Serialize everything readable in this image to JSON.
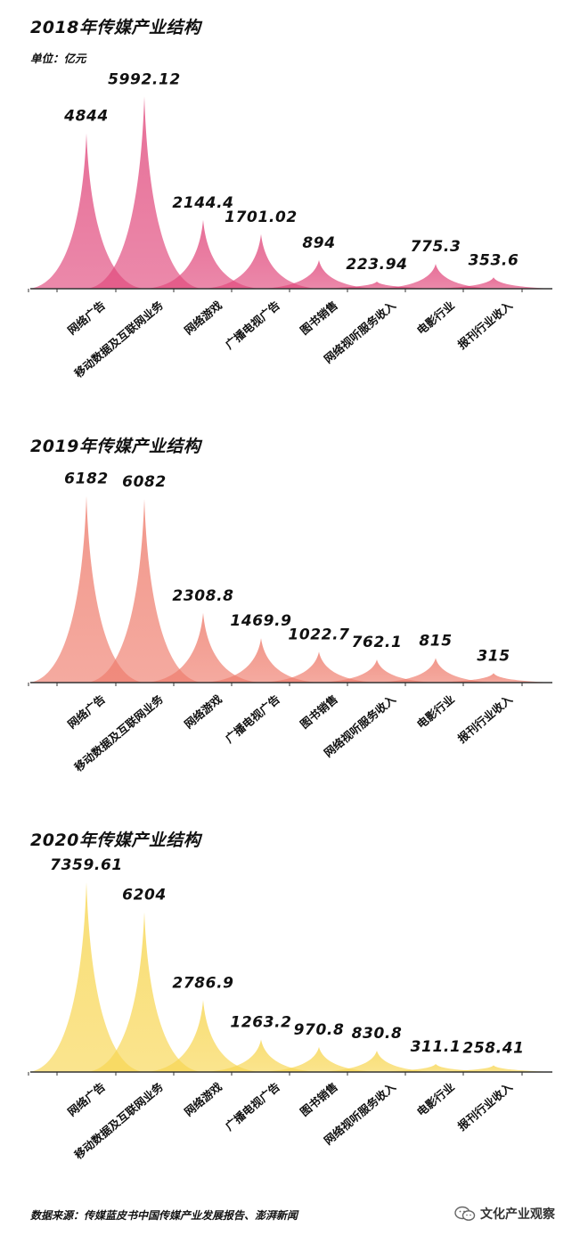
{
  "chart_data": [
    {
      "type": "area",
      "title": "2018年传媒产业结构",
      "unit": "单位：亿元",
      "color": "#E0467A",
      "categories": [
        "网络广告",
        "移动数据及互联网业务",
        "网络游戏",
        "广播电视广告",
        "图书销售",
        "网络视听服务收入",
        "电影行业",
        "报刊行业收入"
      ],
      "values": [
        4844,
        5992.12,
        2144.4,
        1701.02,
        894,
        223.94,
        775.3,
        353.6
      ],
      "value_labels": [
        "4844",
        "5992.12",
        "2144.4",
        "1701.02",
        "894",
        "223.94",
        "775.3",
        "353.6"
      ]
    },
    {
      "type": "area",
      "title": "2019年传媒产业结构",
      "unit": "",
      "color": "#EE7A6A",
      "categories": [
        "网络广告",
        "移动数据及互联网业务",
        "网络游戏",
        "广播电视广告",
        "图书销售",
        "网络视听服务收入",
        "电影行业",
        "报刊行业收入"
      ],
      "values": [
        6182,
        6082,
        2308.8,
        1469.9,
        1022.7,
        762.1,
        815,
        315
      ],
      "value_labels": [
        "6182",
        "6082",
        "2308.8",
        "1469.9",
        "1022.7",
        "762.1",
        "815",
        "315"
      ]
    },
    {
      "type": "area",
      "title": "2020年传媒产业结构",
      "unit": "",
      "color": "#F7D54E",
      "categories": [
        "网络广告",
        "移动数据及互联网业务",
        "网络游戏",
        "广播电视广告",
        "图书销售",
        "网络视听服务收入",
        "电影行业",
        "报刊行业收入"
      ],
      "values": [
        7359.61,
        6204,
        2786.9,
        1263.2,
        970.8,
        830.8,
        311.1,
        258.41
      ],
      "value_labels": [
        "7359.61",
        "6204",
        "2786.9",
        "1263.2",
        "970.8",
        "830.8",
        "311.1",
        "258.41"
      ]
    }
  ],
  "footer": {
    "source": "数据来源：传媒蓝皮书中国传媒产业发展报告、澎湃新闻",
    "brand": "文化产业观察",
    "brand_icon": "wechat-icon"
  }
}
